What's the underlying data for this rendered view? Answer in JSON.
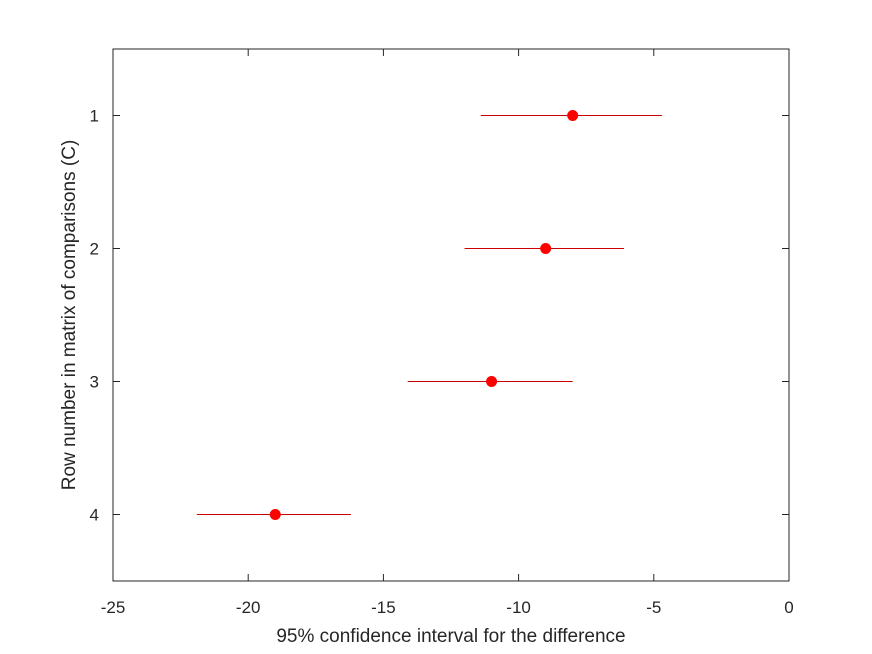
{
  "chart_data": {
    "type": "scatter",
    "xlabel": "95% confidence interval for the difference",
    "ylabel": "Row number in matrix of comparisons (C)",
    "xlim": [
      -25,
      0
    ],
    "ylim": [
      0.5,
      4.5
    ],
    "y_reversed": true,
    "x_ticks": [
      -25,
      -20,
      -15,
      -10,
      -5,
      0
    ],
    "y_ticks": [
      1,
      2,
      3,
      4
    ],
    "grid": false,
    "series": [
      {
        "points": [
          {
            "row": 1,
            "estimate": -8.0,
            "lower": -11.4,
            "upper": -4.7
          },
          {
            "row": 2,
            "estimate": -9.0,
            "lower": -12.0,
            "upper": -6.1
          },
          {
            "row": 3,
            "estimate": -11.0,
            "lower": -14.1,
            "upper": -8.0
          },
          {
            "row": 4,
            "estimate": -19.0,
            "lower": -21.9,
            "upper": -16.2
          }
        ]
      }
    ],
    "colors": {
      "marker": "#ff0000",
      "interval": "#cc0000",
      "axis": "#262626"
    }
  }
}
